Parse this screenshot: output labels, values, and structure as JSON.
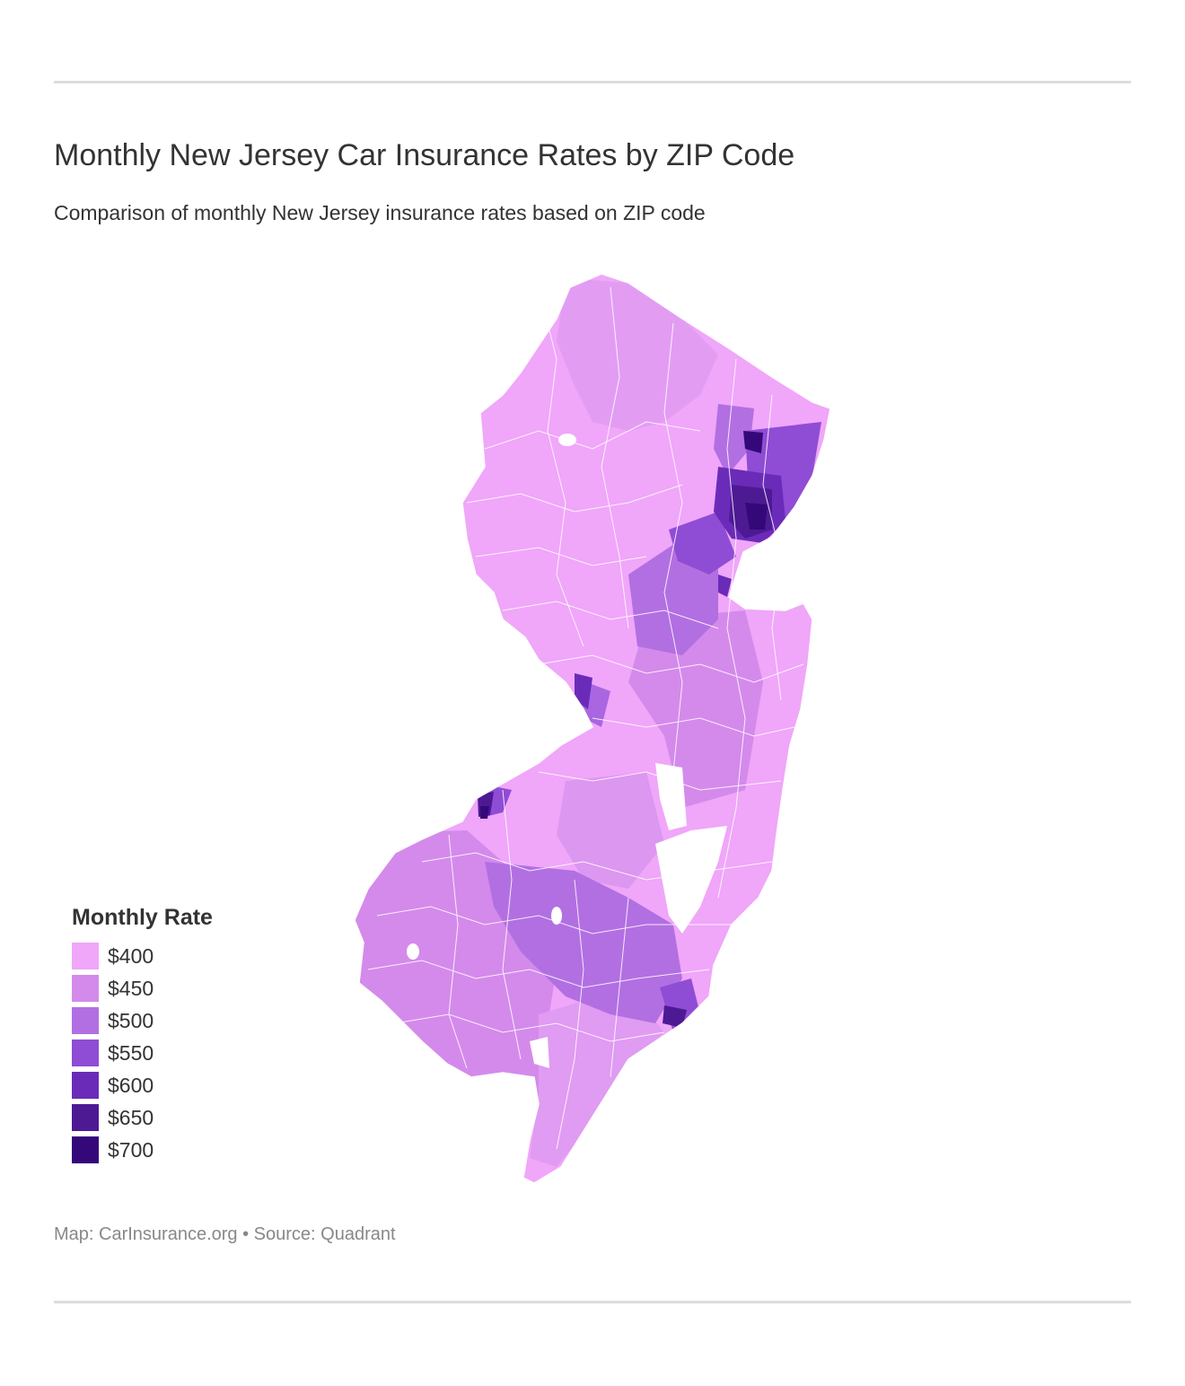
{
  "header": {
    "title": "Monthly New Jersey Car Insurance Rates by ZIP Code",
    "subtitle": "Comparison of monthly New Jersey insurance rates based on ZIP code"
  },
  "legend": {
    "title": "Monthly Rate",
    "items": [
      {
        "label": "$400",
        "value": 400,
        "color": "#f0a6f9"
      },
      {
        "label": "$450",
        "value": 450,
        "color": "#d48aeb"
      },
      {
        "label": "$500",
        "value": 500,
        "color": "#b26fe2"
      },
      {
        "label": "$550",
        "value": 550,
        "color": "#8f4cd5"
      },
      {
        "label": "$600",
        "value": 600,
        "color": "#6b2bb9"
      },
      {
        "label": "$650",
        "value": 650,
        "color": "#4e1a94"
      },
      {
        "label": "$700",
        "value": 700,
        "color": "#35087a"
      }
    ]
  },
  "map": {
    "region": "New Jersey",
    "border_color": "#ffffff"
  },
  "footer": {
    "credit": "Map: CarInsurance.org • Source: Quadrant"
  }
}
